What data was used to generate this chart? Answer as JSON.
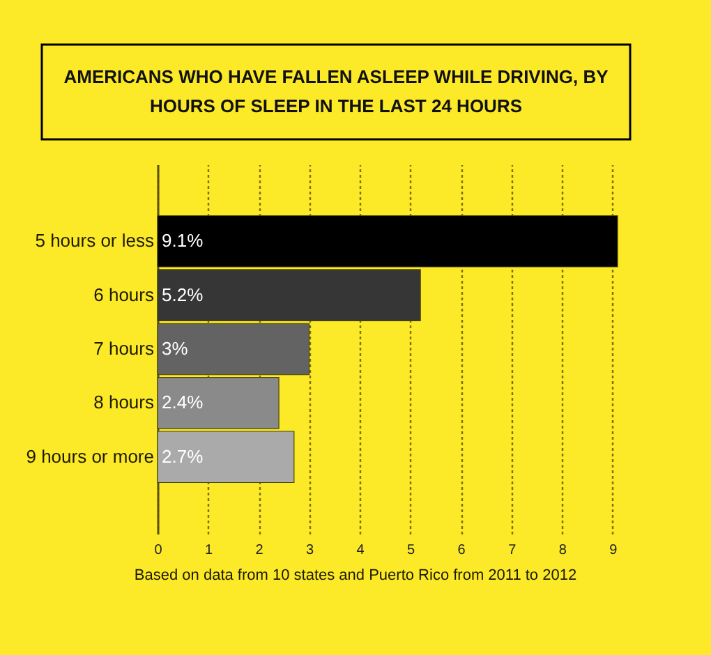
{
  "chart_data": {
    "type": "bar",
    "orientation": "horizontal",
    "title": "AMERICANS WHO HAVE FALLEN ASLEEP WHILE DRIVING, BY HOURS OF SLEEP IN THE LAST 24 HOURS",
    "categories": [
      "5 hours or less",
      "6 hours",
      "7 hours",
      "8 hours",
      "9 hours or more"
    ],
    "values": [
      9.1,
      5.2,
      3,
      2.4,
      2.7
    ],
    "colors": [
      "#000000",
      "#363636",
      "#636363",
      "#8a8a8a",
      "#aaaaaa"
    ],
    "value_labels": [
      "9.1%",
      "5.2%",
      "3%",
      "2.4%",
      "2.7%"
    ],
    "xlim": [
      0,
      9.1
    ],
    "xticks": [
      0,
      1,
      2,
      3,
      4,
      5,
      6,
      7,
      8,
      9
    ],
    "grid": "x",
    "annotations": [
      "Based on data from 10 states and Puerto Rico from 2011 to 2012"
    ]
  }
}
